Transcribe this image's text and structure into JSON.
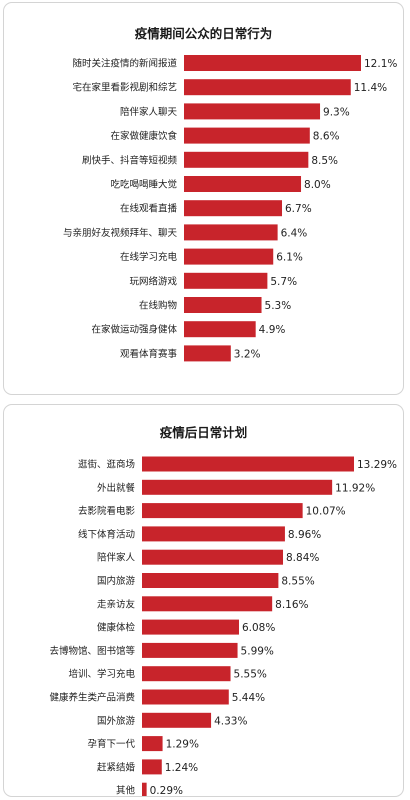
{
  "chart_data": [
    {
      "type": "bar",
      "orientation": "horizontal",
      "title": "疫情期间公众的日常行为",
      "color": "#c8242b",
      "categories": [
        "随时关注疫情的新闻报道",
        "宅在家里看影视剧和综艺",
        "陪伴家人聊天",
        "在家做健康饮食",
        "刷快手、抖音等短视频",
        "吃吃喝喝睡大觉",
        "在线观看直播",
        "与亲朋好友视频拜年、聊天",
        "在线学习充电",
        "玩网络游戏",
        "在线购物",
        "在家做运动强身健体",
        "观看体育赛事"
      ],
      "values": [
        12.1,
        11.4,
        9.3,
        8.6,
        8.5,
        8.0,
        6.7,
        6.4,
        6.1,
        5.7,
        5.3,
        4.9,
        3.2
      ],
      "labels": [
        "12.1%",
        "11.4%",
        "9.3%",
        "8.6%",
        "8.5%",
        "8.0%",
        "6.7%",
        "6.4%",
        "6.1%",
        "5.7%",
        "5.3%",
        "4.9%",
        "3.2%"
      ],
      "xlim": [
        0,
        12.1
      ],
      "grid": false,
      "legend": "none"
    },
    {
      "type": "bar",
      "orientation": "horizontal",
      "title": "疫情后日常计划",
      "color": "#c8242b",
      "categories": [
        "逛街、逛商场",
        "外出就餐",
        "去影院看电影",
        "线下体育活动",
        "陪伴家人",
        "国内旅游",
        "走亲访友",
        "健康体检",
        "去博物馆、图书馆等",
        "培训、学习充电",
        "健康养生类产品消费",
        "国外旅游",
        "孕育下一代",
        "赶紧结婚",
        "其他"
      ],
      "values": [
        13.29,
        11.92,
        10.07,
        8.96,
        8.84,
        8.55,
        8.16,
        6.08,
        5.99,
        5.55,
        5.44,
        4.33,
        1.29,
        1.24,
        0.29
      ],
      "labels": [
        "13.29%",
        "11.92%",
        "10.07%",
        "8.96%",
        "8.84%",
        "8.55%",
        "8.16%",
        "6.08%",
        "5.99%",
        "5.55%",
        "5.44%",
        "4.33%",
        "1.29%",
        "1.24%",
        "0.29%"
      ],
      "xlim": [
        0,
        13.29
      ],
      "grid": false,
      "legend": "none"
    }
  ]
}
